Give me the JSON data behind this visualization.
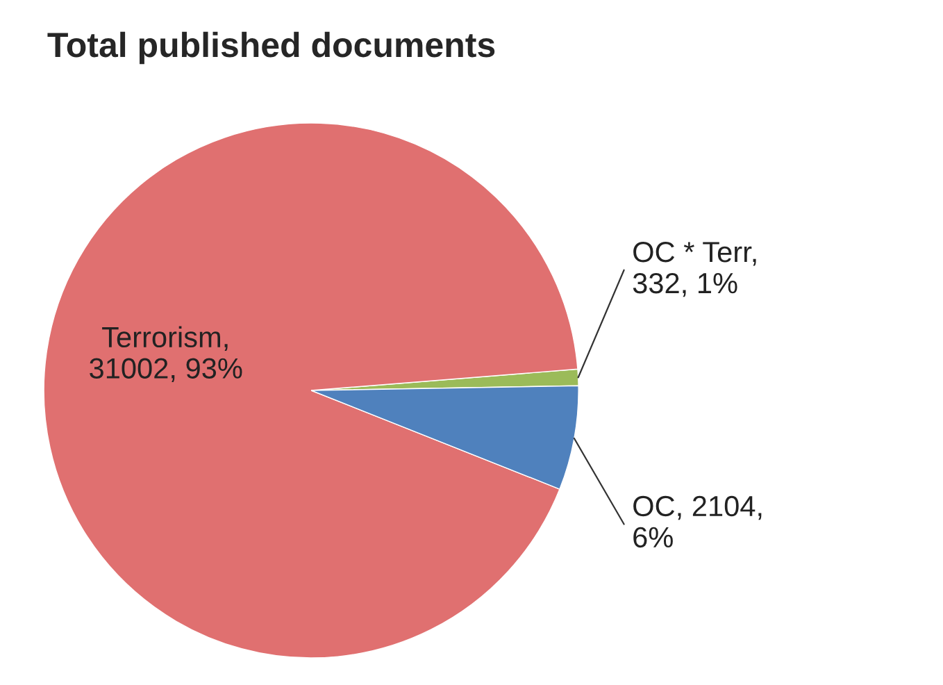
{
  "chart_data": {
    "type": "pie",
    "title": "Total published documents",
    "categories": [
      "OC * Terr,\n332, 1%",
      "Terrorism,\n31002, 93%",
      "OC, 2104,\n6%"
    ],
    "values": [
      332,
      31002,
      2104
    ],
    "colors": [
      "#9bbb59",
      "#e07070",
      "#4f81bd"
    ]
  }
}
